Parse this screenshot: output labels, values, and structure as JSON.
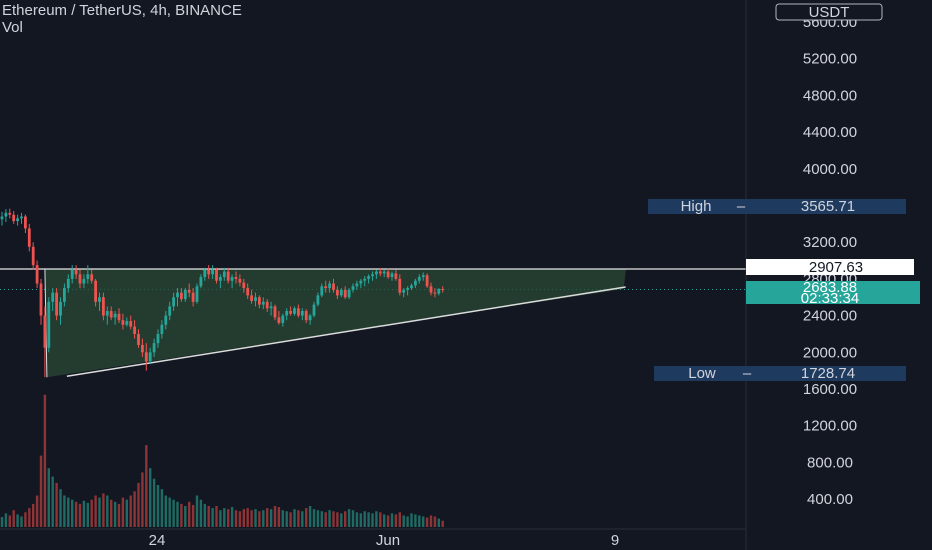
{
  "header": {
    "title": "Ethereum / TetherUS, 4h, BINANCE",
    "indicator": "Vol"
  },
  "axis": {
    "currency": "USDT",
    "price_labels": [
      "5600.00",
      "5200.00",
      "4800.00",
      "4400.00",
      "4000.00",
      "3200.00",
      "2800.00",
      "2400.00",
      "2000.00",
      "1600.00",
      "1200.00",
      "800.00",
      "400.00"
    ],
    "time_labels": [
      "24",
      "Jun",
      "9"
    ]
  },
  "tags": {
    "high_label": "High",
    "high_value": "3565.71",
    "low_label": "Low",
    "low_value": "1728.74",
    "resistance_value": "2907.63",
    "last_price": "2683.88",
    "countdown": "02:33:34"
  },
  "colors": {
    "background": "#131722",
    "up": "#26a69a",
    "down": "#ef5350",
    "up_volume": "#1f6b63",
    "down_volume": "#8c3436",
    "triangle_fill": "#2b4a34",
    "tag_blue": "#1e3a5f",
    "last_price_tag": "#26a69a"
  },
  "chart_data": {
    "type": "candlestick",
    "symbol": "ETHUSDT",
    "interval": "4h",
    "exchange": "BINANCE",
    "ylim": [
      0,
      5800
    ],
    "x_ticks": [
      "24",
      "Jun",
      "9"
    ],
    "high": 3565.71,
    "low": 1728.74,
    "resistance": 2907.63,
    "last": 2683.88,
    "triangle": {
      "upper": [
        [
          0,
          2908
        ],
        [
          160,
          2908
        ]
      ],
      "lower": [
        [
          11,
          1728
        ],
        [
          144,
          2690
        ]
      ]
    },
    "candles": [
      {
        "o": 3450,
        "h": 3530,
        "l": 3380,
        "c": 3480
      },
      {
        "o": 3480,
        "h": 3560,
        "l": 3420,
        "c": 3520
      },
      {
        "o": 3520,
        "h": 3566,
        "l": 3460,
        "c": 3500
      },
      {
        "o": 3500,
        "h": 3540,
        "l": 3400,
        "c": 3430
      },
      {
        "o": 3430,
        "h": 3500,
        "l": 3380,
        "c": 3460
      },
      {
        "o": 3460,
        "h": 3520,
        "l": 3400,
        "c": 3480
      },
      {
        "o": 3480,
        "h": 3500,
        "l": 3300,
        "c": 3350
      },
      {
        "o": 3350,
        "h": 3400,
        "l": 3100,
        "c": 3150
      },
      {
        "o": 3150,
        "h": 3200,
        "l": 2900,
        "c": 2950
      },
      {
        "o": 2950,
        "h": 3000,
        "l": 2700,
        "c": 2750
      },
      {
        "o": 2750,
        "h": 2800,
        "l": 2300,
        "c": 2400
      },
      {
        "o": 2400,
        "h": 2500,
        "l": 1729,
        "c": 2050
      },
      {
        "o": 2050,
        "h": 2600,
        "l": 2000,
        "c": 2550
      },
      {
        "o": 2550,
        "h": 2700,
        "l": 2450,
        "c": 2650
      },
      {
        "o": 2650,
        "h": 2700,
        "l": 2350,
        "c": 2400
      },
      {
        "o": 2400,
        "h": 2600,
        "l": 2300,
        "c": 2550
      },
      {
        "o": 2550,
        "h": 2750,
        "l": 2500,
        "c": 2700
      },
      {
        "o": 2700,
        "h": 2850,
        "l": 2650,
        "c": 2800
      },
      {
        "o": 2800,
        "h": 2950,
        "l": 2750,
        "c": 2900
      },
      {
        "o": 2900,
        "h": 2950,
        "l": 2800,
        "c": 2850
      },
      {
        "o": 2850,
        "h": 2900,
        "l": 2700,
        "c": 2750
      },
      {
        "o": 2750,
        "h": 2850,
        "l": 2700,
        "c": 2800
      },
      {
        "o": 2800,
        "h": 2950,
        "l": 2750,
        "c": 2850
      },
      {
        "o": 2850,
        "h": 2900,
        "l": 2750,
        "c": 2780
      },
      {
        "o": 2780,
        "h": 2800,
        "l": 2500,
        "c": 2550
      },
      {
        "o": 2550,
        "h": 2650,
        "l": 2450,
        "c": 2600
      },
      {
        "o": 2600,
        "h": 2650,
        "l": 2350,
        "c": 2400
      },
      {
        "o": 2400,
        "h": 2500,
        "l": 2300,
        "c": 2450
      },
      {
        "o": 2450,
        "h": 2500,
        "l": 2350,
        "c": 2380
      },
      {
        "o": 2380,
        "h": 2450,
        "l": 2300,
        "c": 2420
      },
      {
        "o": 2420,
        "h": 2480,
        "l": 2320,
        "c": 2350
      },
      {
        "o": 2350,
        "h": 2420,
        "l": 2250,
        "c": 2300
      },
      {
        "o": 2300,
        "h": 2380,
        "l": 2280,
        "c": 2340
      },
      {
        "o": 2340,
        "h": 2400,
        "l": 2250,
        "c": 2280
      },
      {
        "o": 2280,
        "h": 2350,
        "l": 2150,
        "c": 2200
      },
      {
        "o": 2200,
        "h": 2250,
        "l": 2050,
        "c": 2080
      },
      {
        "o": 2080,
        "h": 2150,
        "l": 1950,
        "c": 2000
      },
      {
        "o": 2000,
        "h": 2100,
        "l": 1800,
        "c": 1900
      },
      {
        "o": 1900,
        "h": 2050,
        "l": 1870,
        "c": 2000
      },
      {
        "o": 2000,
        "h": 2150,
        "l": 1950,
        "c": 2100
      },
      {
        "o": 2100,
        "h": 2250,
        "l": 2050,
        "c": 2200
      },
      {
        "o": 2200,
        "h": 2350,
        "l": 2150,
        "c": 2300
      },
      {
        "o": 2300,
        "h": 2450,
        "l": 2250,
        "c": 2400
      },
      {
        "o": 2400,
        "h": 2550,
        "l": 2350,
        "c": 2500
      },
      {
        "o": 2500,
        "h": 2650,
        "l": 2450,
        "c": 2600
      },
      {
        "o": 2600,
        "h": 2700,
        "l": 2500,
        "c": 2650
      },
      {
        "o": 2650,
        "h": 2700,
        "l": 2550,
        "c": 2580
      },
      {
        "o": 2580,
        "h": 2700,
        "l": 2550,
        "c": 2680
      },
      {
        "o": 2680,
        "h": 2750,
        "l": 2600,
        "c": 2650
      },
      {
        "o": 2650,
        "h": 2700,
        "l": 2500,
        "c": 2550
      },
      {
        "o": 2550,
        "h": 2750,
        "l": 2530,
        "c": 2720
      },
      {
        "o": 2720,
        "h": 2850,
        "l": 2700,
        "c": 2820
      },
      {
        "o": 2820,
        "h": 2920,
        "l": 2780,
        "c": 2900
      },
      {
        "o": 2900,
        "h": 2950,
        "l": 2800,
        "c": 2850
      },
      {
        "o": 2850,
        "h": 2950,
        "l": 2800,
        "c": 2900
      },
      {
        "o": 2900,
        "h": 2920,
        "l": 2750,
        "c": 2780
      },
      {
        "o": 2780,
        "h": 2850,
        "l": 2700,
        "c": 2820
      },
      {
        "o": 2820,
        "h": 2920,
        "l": 2780,
        "c": 2880
      },
      {
        "o": 2880,
        "h": 2920,
        "l": 2750,
        "c": 2780
      },
      {
        "o": 2780,
        "h": 2850,
        "l": 2700,
        "c": 2820
      },
      {
        "o": 2820,
        "h": 2880,
        "l": 2750,
        "c": 2800
      },
      {
        "o": 2800,
        "h": 2850,
        "l": 2720,
        "c": 2760
      },
      {
        "o": 2760,
        "h": 2800,
        "l": 2650,
        "c": 2700
      },
      {
        "o": 2700,
        "h": 2750,
        "l": 2580,
        "c": 2620
      },
      {
        "o": 2620,
        "h": 2680,
        "l": 2530,
        "c": 2560
      },
      {
        "o": 2560,
        "h": 2650,
        "l": 2500,
        "c": 2600
      },
      {
        "o": 2600,
        "h": 2620,
        "l": 2480,
        "c": 2520
      },
      {
        "o": 2520,
        "h": 2600,
        "l": 2470,
        "c": 2550
      },
      {
        "o": 2550,
        "h": 2580,
        "l": 2440,
        "c": 2480
      },
      {
        "o": 2480,
        "h": 2550,
        "l": 2400,
        "c": 2500
      },
      {
        "o": 2500,
        "h": 2520,
        "l": 2350,
        "c": 2380
      },
      {
        "o": 2380,
        "h": 2450,
        "l": 2300,
        "c": 2320
      },
      {
        "o": 2320,
        "h": 2420,
        "l": 2280,
        "c": 2400
      },
      {
        "o": 2400,
        "h": 2480,
        "l": 2350,
        "c": 2450
      },
      {
        "o": 2450,
        "h": 2500,
        "l": 2400,
        "c": 2420
      },
      {
        "o": 2420,
        "h": 2500,
        "l": 2400,
        "c": 2480
      },
      {
        "o": 2480,
        "h": 2520,
        "l": 2380,
        "c": 2400
      },
      {
        "o": 2400,
        "h": 2480,
        "l": 2350,
        "c": 2450
      },
      {
        "o": 2450,
        "h": 2470,
        "l": 2320,
        "c": 2350
      },
      {
        "o": 2350,
        "h": 2420,
        "l": 2300,
        "c": 2400
      },
      {
        "o": 2400,
        "h": 2550,
        "l": 2380,
        "c": 2520
      },
      {
        "o": 2520,
        "h": 2650,
        "l": 2500,
        "c": 2620
      },
      {
        "o": 2620,
        "h": 2750,
        "l": 2600,
        "c": 2720
      },
      {
        "o": 2720,
        "h": 2780,
        "l": 2650,
        "c": 2700
      },
      {
        "o": 2700,
        "h": 2780,
        "l": 2650,
        "c": 2750
      },
      {
        "o": 2750,
        "h": 2800,
        "l": 2650,
        "c": 2680
      },
      {
        "o": 2680,
        "h": 2720,
        "l": 2580,
        "c": 2620
      },
      {
        "o": 2620,
        "h": 2700,
        "l": 2600,
        "c": 2680
      },
      {
        "o": 2680,
        "h": 2720,
        "l": 2580,
        "c": 2600
      },
      {
        "o": 2600,
        "h": 2700,
        "l": 2580,
        "c": 2680
      },
      {
        "o": 2680,
        "h": 2750,
        "l": 2650,
        "c": 2720
      },
      {
        "o": 2720,
        "h": 2780,
        "l": 2680,
        "c": 2750
      },
      {
        "o": 2750,
        "h": 2800,
        "l": 2700,
        "c": 2780
      },
      {
        "o": 2780,
        "h": 2830,
        "l": 2720,
        "c": 2800
      },
      {
        "o": 2800,
        "h": 2850,
        "l": 2750,
        "c": 2830
      },
      {
        "o": 2830,
        "h": 2880,
        "l": 2780,
        "c": 2850
      },
      {
        "o": 2850,
        "h": 2900,
        "l": 2800,
        "c": 2880
      },
      {
        "o": 2880,
        "h": 2920,
        "l": 2830,
        "c": 2860
      },
      {
        "o": 2860,
        "h": 2900,
        "l": 2820,
        "c": 2880
      },
      {
        "o": 2880,
        "h": 2910,
        "l": 2800,
        "c": 2820
      },
      {
        "o": 2820,
        "h": 2880,
        "l": 2780,
        "c": 2860
      },
      {
        "o": 2860,
        "h": 2900,
        "l": 2780,
        "c": 2800
      },
      {
        "o": 2800,
        "h": 2850,
        "l": 2620,
        "c": 2650
      },
      {
        "o": 2650,
        "h": 2700,
        "l": 2600,
        "c": 2680
      },
      {
        "o": 2680,
        "h": 2720,
        "l": 2620,
        "c": 2700
      },
      {
        "o": 2700,
        "h": 2750,
        "l": 2680,
        "c": 2730
      },
      {
        "o": 2730,
        "h": 2800,
        "l": 2700,
        "c": 2780
      },
      {
        "o": 2780,
        "h": 2850,
        "l": 2750,
        "c": 2820
      },
      {
        "o": 2820,
        "h": 2870,
        "l": 2780,
        "c": 2840
      },
      {
        "o": 2840,
        "h": 2860,
        "l": 2700,
        "c": 2720
      },
      {
        "o": 2720,
        "h": 2760,
        "l": 2620,
        "c": 2650
      },
      {
        "o": 2650,
        "h": 2700,
        "l": 2600,
        "c": 2640
      },
      {
        "o": 2640,
        "h": 2700,
        "l": 2620,
        "c": 2690
      },
      {
        "o": 2690,
        "h": 2720,
        "l": 2650,
        "c": 2684
      }
    ],
    "volume": [
      95,
      130,
      110,
      160,
      120,
      100,
      140,
      180,
      220,
      300,
      680,
      1260,
      560,
      480,
      420,
      360,
      300,
      280,
      260,
      240,
      220,
      250,
      230,
      260,
      300,
      280,
      320,
      300,
      260,
      240,
      220,
      280,
      260,
      300,
      340,
      420,
      520,
      780,
      560,
      460,
      400,
      360,
      300,
      280,
      260,
      240,
      220,
      200,
      240,
      210,
      300,
      260,
      220,
      200,
      180,
      200,
      160,
      180,
      170,
      190,
      160,
      150,
      170,
      180,
      160,
      170,
      150,
      160,
      180,
      170,
      200,
      190,
      160,
      150,
      140,
      170,
      160,
      150,
      180,
      200,
      170,
      160,
      150,
      140,
      160,
      150,
      140,
      130,
      150,
      170,
      160,
      140,
      130,
      150,
      140,
      130,
      150,
      140,
      120,
      110,
      130,
      120,
      140,
      110,
      100,
      130,
      120,
      110,
      100,
      90,
      110,
      100,
      80,
      60
    ]
  }
}
